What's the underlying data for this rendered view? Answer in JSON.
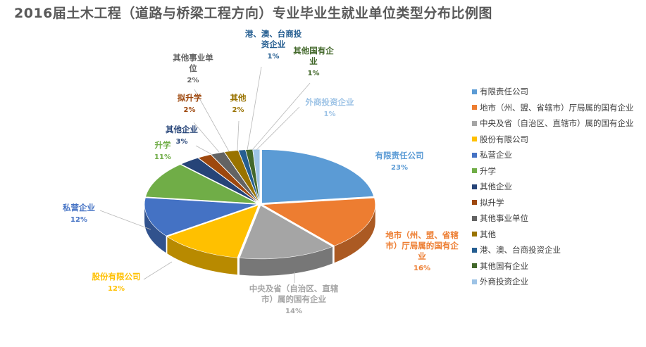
{
  "title": "2016届土木工程（道路与桥梁工程方向）专业毕业生就业单位类型分布比例图",
  "chart_data": {
    "type": "pie",
    "title": "2016届土木工程（道路与桥梁工程方向）专业毕业生就业单位类型分布比例图",
    "labels": [
      "有限责任公司",
      "地市（州、盟、省辖市）厅局属的国有企业",
      "中央及省（自治区、直辖市）属的国有企业",
      "股份有限公司",
      "私营企业",
      "升学",
      "其他企业",
      "拟升学",
      "其他事业单位",
      "其他",
      "港、澳、台商投资企业",
      "其他国有企业",
      "外商投资企业"
    ],
    "values": [
      23,
      16,
      14,
      12,
      12,
      11,
      3,
      2,
      2,
      2,
      1,
      1,
      1
    ],
    "value_labels": [
      "23%",
      "16%",
      "14%",
      "12%",
      "12%",
      "11%",
      "3%",
      "2%",
      "2%",
      "2%",
      "1%",
      "1%",
      "1%"
    ],
    "colors": [
      "#5B9BD5",
      "#ED7D31",
      "#A5A5A5",
      "#FFC000",
      "#4472C4",
      "#70AD47",
      "#264478",
      "#9E480E",
      "#636363",
      "#997300",
      "#255E91",
      "#43682B",
      "#9DC3E6"
    ],
    "callout_lines": {
      "0": [
        "有限责任公司"
      ],
      "1": [
        "地市（州、盟、省辖",
        "市）厅局属的国有企",
        "业"
      ],
      "2": [
        "中央及省（自治区、直辖",
        "市）属的国有企业"
      ],
      "3": [
        "股份有限公司"
      ],
      "4": [
        "私营企业"
      ],
      "5": [
        "升学"
      ],
      "6": [
        "其他企业"
      ],
      "7": [
        "拟升学"
      ],
      "8": [
        "其他事业单",
        "位"
      ],
      "9": [
        "其他"
      ],
      "10": [
        "港、澳、台商投",
        "资企业"
      ],
      "11": [
        "其他国有企",
        "业"
      ],
      "12": [
        "外商投资企业"
      ]
    },
    "legend_position": "right",
    "style": "3d-exploded-pie"
  }
}
